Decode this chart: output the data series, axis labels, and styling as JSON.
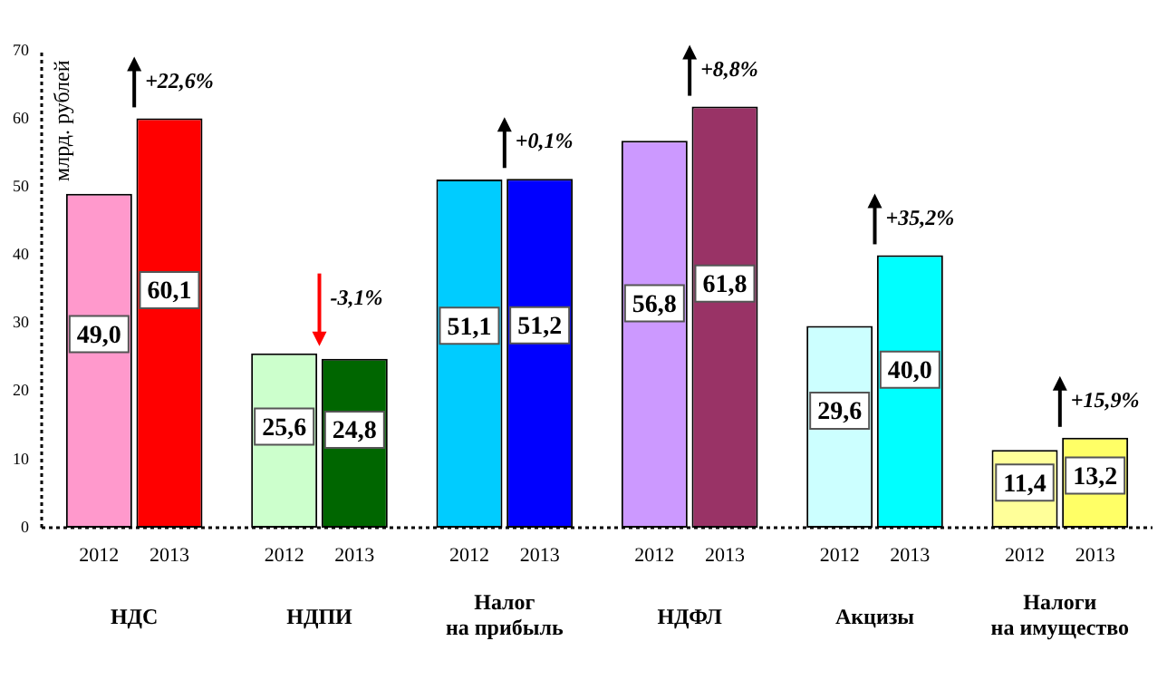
{
  "chart_data": {
    "type": "bar",
    "ylabel": "млрд. рублей",
    "categories": [
      "НДС",
      "НДПИ",
      "Налог\nна прибыль",
      "НДФЛ",
      "Акцизы",
      "Налоги\nна имущество"
    ],
    "series": [
      {
        "name": "2012",
        "colors": [
          "#ff99cc",
          "#ccffcc",
          "#00ccff",
          "#cc99ff",
          "#ccffff",
          "#ffff99"
        ],
        "values": [
          49.0,
          25.6,
          51.1,
          56.8,
          29.6,
          11.4
        ],
        "value_labels": [
          "49,0",
          "25,6",
          "51,1",
          "56,8",
          "29,6",
          "11,4"
        ]
      },
      {
        "name": "2013",
        "colors": [
          "#ff0000",
          "#006600",
          "#0000ff",
          "#993366",
          "#00ffff",
          "#ffff66"
        ],
        "values": [
          60.1,
          24.8,
          51.2,
          61.8,
          40.0,
          13.2
        ],
        "value_labels": [
          "60,1",
          "24,8",
          "51,2",
          "61,8",
          "40,0",
          "13,2"
        ]
      }
    ],
    "ylim": [
      0,
      70
    ],
    "yticks": [
      0,
      10,
      20,
      30,
      40,
      50,
      60,
      70
    ],
    "grid": false,
    "legend": false,
    "annotations": [
      "+22,6%",
      "-3,1%",
      "+0,1%",
      "+8,8%",
      "+35,2%",
      "+15,9%"
    ]
  }
}
